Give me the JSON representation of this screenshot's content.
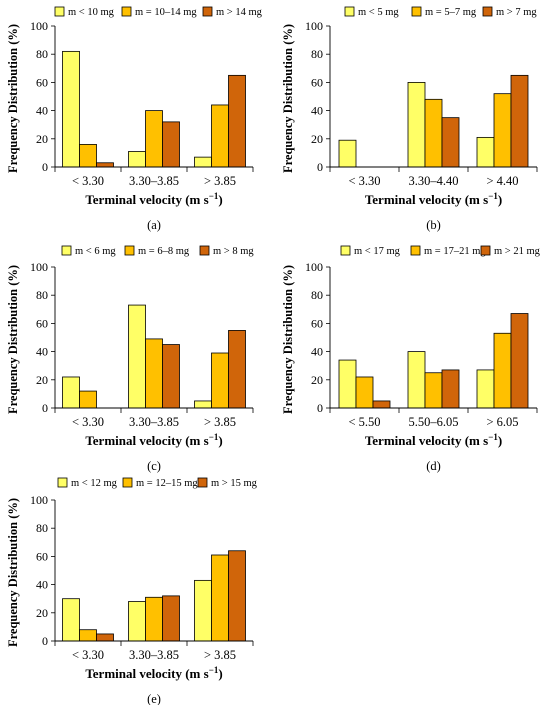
{
  "figure": {
    "series_colors": [
      "#FFFF66",
      "#FFC000",
      "#D0650A"
    ],
    "ylabel": "Frequency Distribution (%)",
    "xlabel_main": "Terminal velocity (m s",
    "xlabel_sup": "−1",
    "xlabel_close": ")"
  },
  "chart_data": [
    {
      "type": "bar",
      "panel_label": "(a)",
      "categories": [
        "< 3.30",
        "3.30–3.85",
        "> 3.85"
      ],
      "series": [
        {
          "name": "m < 10 mg",
          "values": [
            82,
            11,
            7
          ]
        },
        {
          "name": "m = 10–14 mg",
          "values": [
            16,
            40,
            44
          ]
        },
        {
          "name": "m > 14 mg",
          "values": [
            3,
            32,
            65
          ]
        }
      ],
      "ylim": [
        0,
        100
      ],
      "yticks": [
        "0",
        "20",
        "40",
        "60",
        "80",
        "100"
      ],
      "grid": false,
      "legend": "top"
    },
    {
      "type": "bar",
      "panel_label": "(b)",
      "categories": [
        "< 3.30",
        "3.30–4.40",
        "> 4.40"
      ],
      "series": [
        {
          "name": "m < 5 mg",
          "values": [
            19,
            60,
            21
          ]
        },
        {
          "name": "m = 5–7 mg",
          "values": [
            0,
            48,
            52
          ]
        },
        {
          "name": "m > 7 mg",
          "values": [
            0,
            35,
            65
          ]
        }
      ],
      "ylim": [
        0,
        100
      ],
      "yticks": [
        "0",
        "20",
        "40",
        "60",
        "80",
        "100"
      ],
      "grid": false,
      "legend": "top"
    },
    {
      "type": "bar",
      "panel_label": "(c)",
      "categories": [
        "< 3.30",
        "3.30–3.85",
        "> 3.85"
      ],
      "series": [
        {
          "name": "m < 6 mg",
          "values": [
            22,
            73,
            5
          ]
        },
        {
          "name": "m = 6–8 mg",
          "values": [
            12,
            49,
            39
          ]
        },
        {
          "name": "m > 8 mg",
          "values": [
            0,
            45,
            55
          ]
        }
      ],
      "ylim": [
        0,
        100
      ],
      "yticks": [
        "0",
        "20",
        "40",
        "60",
        "80",
        "100"
      ],
      "grid": false,
      "legend": "top"
    },
    {
      "type": "bar",
      "panel_label": "(d)",
      "categories": [
        "< 5.50",
        "5.50–6.05",
        "> 6.05"
      ],
      "series": [
        {
          "name": "m < 17 mg",
          "values": [
            34,
            40,
            27
          ]
        },
        {
          "name": "m = 17–21 mg",
          "values": [
            22,
            25,
            53
          ]
        },
        {
          "name": "m > 21 mg",
          "values": [
            5,
            27,
            67
          ]
        }
      ],
      "ylim": [
        0,
        100
      ],
      "yticks": [
        "0",
        "20",
        "40",
        "60",
        "80",
        "100"
      ],
      "grid": false,
      "legend": "top"
    },
    {
      "type": "bar",
      "panel_label": "(e)",
      "categories": [
        "< 3.30",
        "3.30–3.85",
        "> 3.85"
      ],
      "series": [
        {
          "name": "m < 12 mg",
          "values": [
            30,
            28,
            43
          ]
        },
        {
          "name": "m = 12–15 mg",
          "values": [
            8,
            31,
            61
          ]
        },
        {
          "name": "m > 15 mg",
          "values": [
            5,
            32,
            64
          ]
        }
      ],
      "ylim": [
        0,
        100
      ],
      "yticks": [
        "0",
        "20",
        "40",
        "60",
        "80",
        "100"
      ],
      "grid": false,
      "legend": "top"
    }
  ]
}
